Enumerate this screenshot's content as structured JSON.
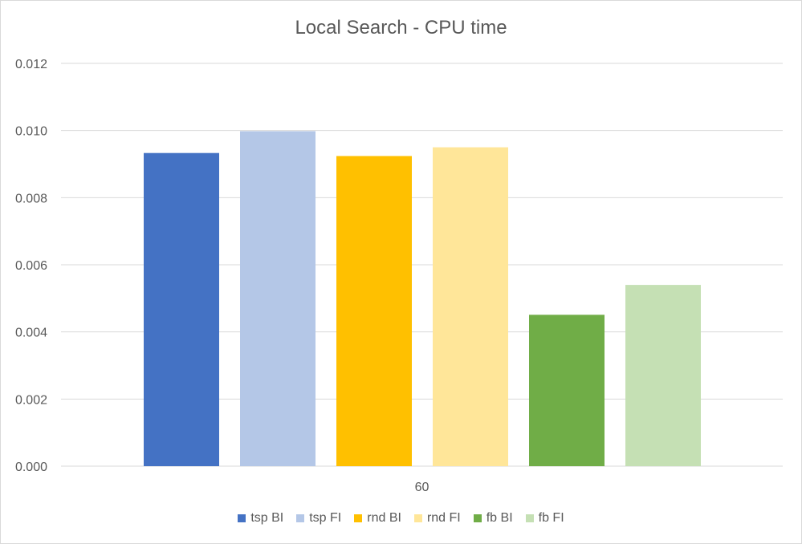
{
  "chart_data": {
    "type": "bar",
    "title": "Local Search - CPU time",
    "categories": [
      "60"
    ],
    "series": [
      {
        "name": "tsp BI",
        "values": [
          0.00933
        ],
        "color": "#4472C4"
      },
      {
        "name": "tsp FI",
        "values": [
          0.00998
        ],
        "color": "#B4C7E7"
      },
      {
        "name": "rnd BI",
        "values": [
          0.00924
        ],
        "color": "#FFC000"
      },
      {
        "name": "rnd FI",
        "values": [
          0.0095
        ],
        "color": "#FFE699"
      },
      {
        "name": "fb BI",
        "values": [
          0.00451
        ],
        "color": "#70AD47"
      },
      {
        "name": "fb FI",
        "values": [
          0.0054
        ],
        "color": "#C5E0B4"
      }
    ],
    "yticks": [
      "0.000",
      "0.002",
      "0.004",
      "0.006",
      "0.008",
      "0.010",
      "0.012"
    ],
    "ylim": [
      0,
      0.012
    ],
    "grid": true,
    "legend_position": "bottom"
  }
}
